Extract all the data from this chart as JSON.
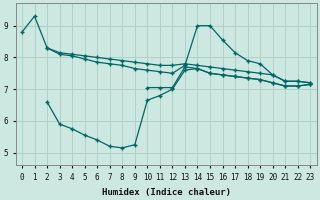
{
  "xlabel": "Humidex (Indice chaleur)",
  "bg_color": "#cce8e0",
  "grid_color": "#b0d0c8",
  "line_color": "#006666",
  "xlim": [
    -0.5,
    23.5
  ],
  "ylim": [
    4.6,
    9.7
  ],
  "line1_x": [
    0,
    1,
    2,
    3,
    4,
    5,
    6,
    7,
    8,
    9,
    10,
    11,
    12,
    13,
    14,
    15,
    16,
    17,
    18,
    19,
    20,
    21,
    22,
    23
  ],
  "line1_y": [
    8.8,
    9.3,
    8.3,
    8.1,
    8.05,
    7.95,
    7.85,
    7.8,
    7.75,
    7.65,
    7.6,
    7.55,
    7.5,
    7.75,
    9.0,
    9.0,
    8.55,
    8.15,
    7.9,
    7.8,
    7.45,
    7.25,
    7.25,
    7.2
  ],
  "line2_x": [
    2,
    3,
    4,
    5,
    6,
    7,
    8,
    9,
    10,
    11,
    12,
    13,
    14,
    15,
    16,
    17,
    18,
    19,
    20,
    21,
    22,
    23
  ],
  "line2_y": [
    8.3,
    8.15,
    8.1,
    8.05,
    8.0,
    7.95,
    7.9,
    7.85,
    7.8,
    7.75,
    7.75,
    7.8,
    7.75,
    7.7,
    7.65,
    7.6,
    7.55,
    7.5,
    7.45,
    7.25,
    7.25,
    7.2
  ],
  "line3_x": [
    2,
    3,
    4,
    5,
    6,
    7,
    8,
    9,
    10,
    11,
    12,
    13,
    14,
    15,
    16,
    17,
    18,
    19,
    20,
    21,
    22,
    23
  ],
  "line3_y": [
    6.6,
    5.9,
    5.75,
    5.55,
    5.4,
    5.2,
    5.15,
    5.25,
    6.65,
    6.8,
    7.0,
    7.6,
    7.65,
    7.5,
    7.45,
    7.4,
    7.35,
    7.3,
    7.2,
    7.1,
    7.1,
    7.15
  ],
  "line4_x": [
    10,
    11,
    12,
    13,
    14,
    15,
    16,
    17,
    18,
    19,
    20,
    21,
    22,
    23
  ],
  "line4_y": [
    7.05,
    7.05,
    7.05,
    7.7,
    7.65,
    7.5,
    7.45,
    7.4,
    7.35,
    7.3,
    7.2,
    7.1,
    7.1,
    7.15
  ],
  "yticks": [
    5,
    6,
    7,
    8,
    9
  ],
  "xticks": [
    0,
    1,
    2,
    3,
    4,
    5,
    6,
    7,
    8,
    9,
    10,
    11,
    12,
    13,
    14,
    15,
    16,
    17,
    18,
    19,
    20,
    21,
    22,
    23
  ]
}
